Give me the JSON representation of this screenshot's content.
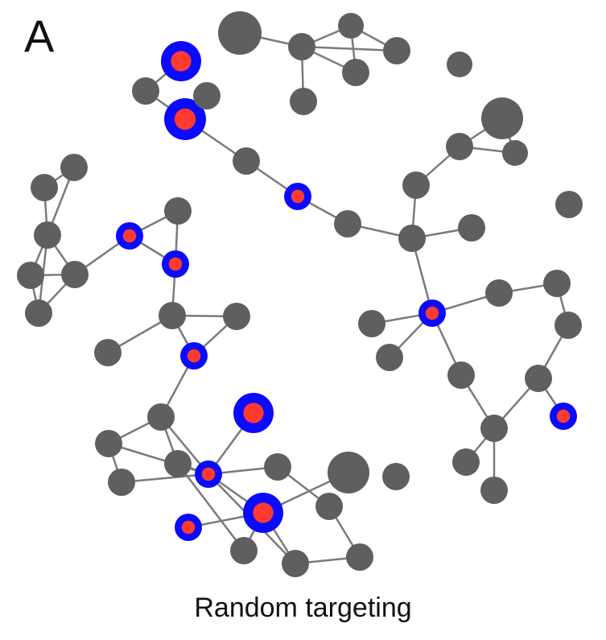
{
  "panel_letter": "A",
  "caption": "Random targeting",
  "colors": {
    "node": "#5f5f5f",
    "edge": "#7a7a7a",
    "target_ring": "#0a0aff",
    "target_core": "#ff3b30"
  }
}
